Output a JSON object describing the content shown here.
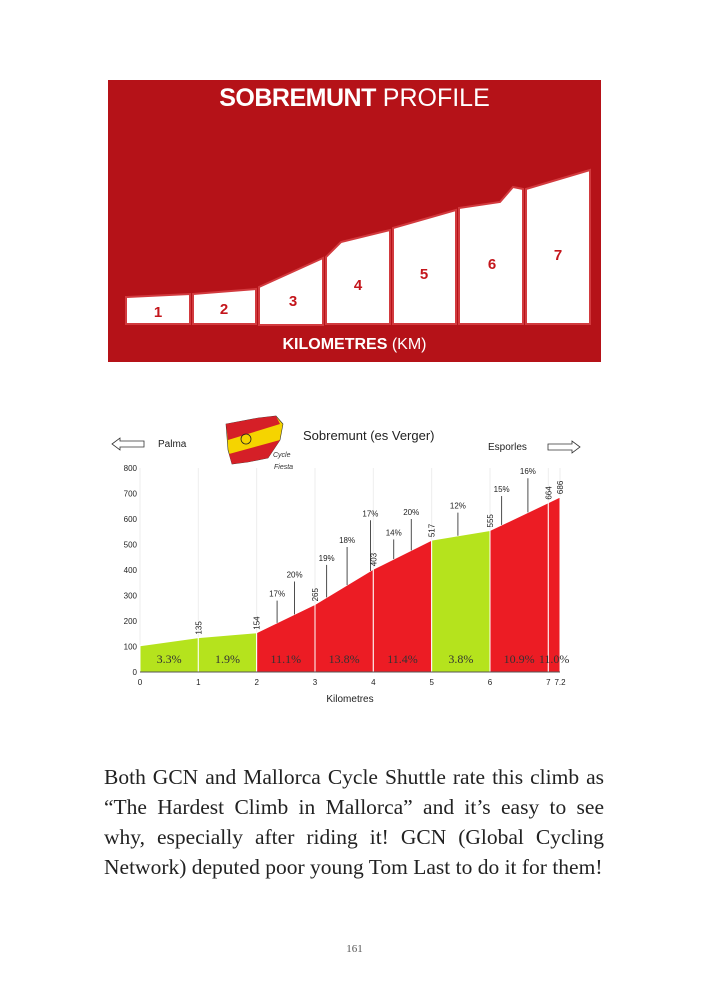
{
  "banner": {
    "title_bold": "SOBREMUNT",
    "title_rest": " PROFILE",
    "km_labels": [
      "1",
      "2",
      "3",
      "4",
      "5",
      "6",
      "7"
    ],
    "xlabel_bold": "KILOMETRES",
    "xlabel_rest": " (KM)",
    "colors": {
      "background": "#b51218",
      "bars": "#ffffff"
    }
  },
  "chart_data": {
    "type": "area",
    "title": "Sobremunt (es Verger)",
    "logo_text": [
      "Cycle",
      "Fiesta"
    ],
    "left_direction": "Palma",
    "right_direction": "Esporles",
    "xlabel": "Kilometres",
    "ylabel": "",
    "xlim": [
      0,
      7.2
    ],
    "ylim": [
      0,
      800
    ],
    "xticks": [
      "0",
      "1",
      "2",
      "3",
      "4",
      "5",
      "6",
      "7",
      "7.2"
    ],
    "yticks": [
      0,
      100,
      200,
      300,
      400,
      500,
      600,
      700,
      800
    ],
    "x": [
      0,
      1,
      2,
      3,
      4,
      5,
      6,
      7,
      7.2
    ],
    "elevation": [
      103,
      135,
      154,
      265,
      403,
      517,
      555,
      664,
      686
    ],
    "elevation_labels": [
      {
        "km": 1,
        "label": "135"
      },
      {
        "km": 2,
        "label": "154"
      },
      {
        "km": 3,
        "label": "265"
      },
      {
        "km": 4,
        "label": "403"
      },
      {
        "km": 5,
        "label": "517"
      },
      {
        "km": 6,
        "label": "555"
      },
      {
        "km": 7,
        "label": "664"
      },
      {
        "km": 7.2,
        "label": "686"
      }
    ],
    "segments": [
      {
        "from": 0,
        "to": 1,
        "gradient": "3.3%",
        "color": "#b5e31d"
      },
      {
        "from": 1,
        "to": 2,
        "gradient": "1.9%",
        "color": "#b5e31d"
      },
      {
        "from": 2,
        "to": 3,
        "gradient": "11.1%",
        "color": "#ec1c24"
      },
      {
        "from": 3,
        "to": 4,
        "gradient": "13.8%",
        "color": "#ec1c24"
      },
      {
        "from": 4,
        "to": 5,
        "gradient": "11.4%",
        "color": "#ec1c24"
      },
      {
        "from": 5,
        "to": 6,
        "gradient": "3.8%",
        "color": "#b5e31d"
      },
      {
        "from": 6,
        "to": 7,
        "gradient": "10.9%",
        "color": "#ec1c24"
      },
      {
        "from": 7,
        "to": 7.2,
        "gradient": "11.0%",
        "color": "#ec1c24"
      }
    ],
    "max_gradients": [
      {
        "km": 2.35,
        "label": "17%",
        "top": 280
      },
      {
        "km": 2.65,
        "label": "20%",
        "top": 355
      },
      {
        "km": 3.2,
        "label": "19%",
        "top": 420
      },
      {
        "km": 3.55,
        "label": "18%",
        "top": 490
      },
      {
        "km": 3.95,
        "label": "17%",
        "top": 595
      },
      {
        "km": 4.35,
        "label": "14%",
        "top": 520
      },
      {
        "km": 4.65,
        "label": "20%",
        "top": 600
      },
      {
        "km": 5.45,
        "label": "12%",
        "top": 625
      },
      {
        "km": 6.2,
        "label": "15%",
        "top": 690
      },
      {
        "km": 6.65,
        "label": "16%",
        "top": 760
      }
    ]
  },
  "body": {
    "paragraph": "Both GCN and Mallorca Cycle Shuttle rate this climb as “The Hardest Climb in Mallorca” and it’s easy to see why, especially after riding it! GCN (Global Cycling Network) deputed poor young Tom Last to do it for them!",
    "page_number": "161"
  }
}
